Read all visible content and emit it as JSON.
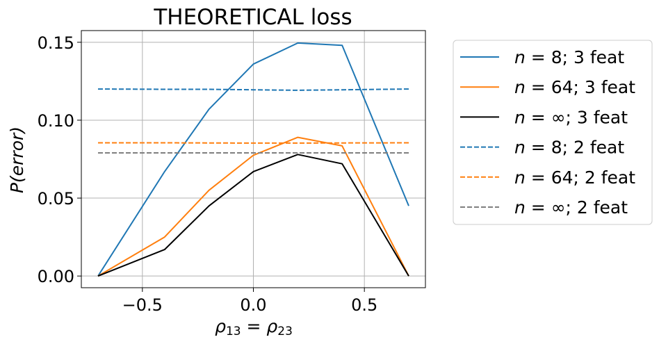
{
  "chart_data": {
    "type": "line",
    "title": "THEORETICAL loss",
    "xlabel": {
      "rho": "ρ",
      "sub1": "13",
      "eq": " = ",
      "sub2": "23"
    },
    "ylabel": "P(error)",
    "xlim": [
      -0.775,
      0.775
    ],
    "ylim": [
      -0.0075,
      0.1575
    ],
    "xticks": [
      -0.5,
      0.0,
      0.5
    ],
    "xtick_labels": [
      "−0.5",
      "0.0",
      "0.5"
    ],
    "yticks": [
      0.0,
      0.05,
      0.1,
      0.15
    ],
    "ytick_labels": [
      "0.00",
      "0.05",
      "0.10",
      "0.15"
    ],
    "grid": true,
    "legend_position": "outside-right",
    "series": [
      {
        "name": "n = 8; 3 feat",
        "n": "8",
        "feat": "3 feat",
        "color": "#1f77b4",
        "style": "solid",
        "x": [
          -0.7,
          -0.4,
          -0.2,
          0.0,
          0.2,
          0.4,
          0.7
        ],
        "y": [
          0.0,
          0.067,
          0.107,
          0.136,
          0.1495,
          0.148,
          0.045
        ]
      },
      {
        "name": "n = 64; 3 feat",
        "n": "64",
        "feat": "3 feat",
        "color": "#ff7f0e",
        "style": "solid",
        "x": [
          -0.7,
          -0.4,
          -0.2,
          0.0,
          0.2,
          0.4,
          0.7
        ],
        "y": [
          0.0,
          0.025,
          0.055,
          0.0775,
          0.089,
          0.0835,
          0.0
        ]
      },
      {
        "name": "n = ∞; 3 feat",
        "n": "∞",
        "feat": "3 feat",
        "color": "#000000",
        "style": "solid",
        "x": [
          -0.7,
          -0.4,
          -0.2,
          0.0,
          0.2,
          0.4,
          0.7
        ],
        "y": [
          0.0,
          0.017,
          0.045,
          0.067,
          0.078,
          0.072,
          0.0
        ]
      },
      {
        "name": "n = 8; 2 feat",
        "n": "8",
        "feat": "2 feat",
        "color": "#1f77b4",
        "style": "dashed",
        "x": [
          -0.7,
          -0.4,
          -0.2,
          0.0,
          0.2,
          0.4,
          0.7
        ],
        "y": [
          0.12,
          0.1198,
          0.1198,
          0.1195,
          0.1192,
          0.1195,
          0.12
        ]
      },
      {
        "name": "n = 64; 2 feat",
        "n": "64",
        "feat": "2 feat",
        "color": "#ff7f0e",
        "style": "dashed",
        "x": [
          -0.7,
          -0.4,
          -0.2,
          0.0,
          0.2,
          0.4,
          0.7
        ],
        "y": [
          0.0855,
          0.0855,
          0.0854,
          0.0853,
          0.0853,
          0.0854,
          0.0855
        ]
      },
      {
        "name": "n = ∞; 2 feat",
        "n": "∞",
        "feat": "2 feat",
        "color": "#7f7f7f",
        "style": "dashed",
        "x": [
          -0.7,
          -0.4,
          -0.2,
          0.0,
          0.2,
          0.4,
          0.7
        ],
        "y": [
          0.079,
          0.079,
          0.079,
          0.079,
          0.079,
          0.079,
          0.079
        ]
      }
    ]
  }
}
